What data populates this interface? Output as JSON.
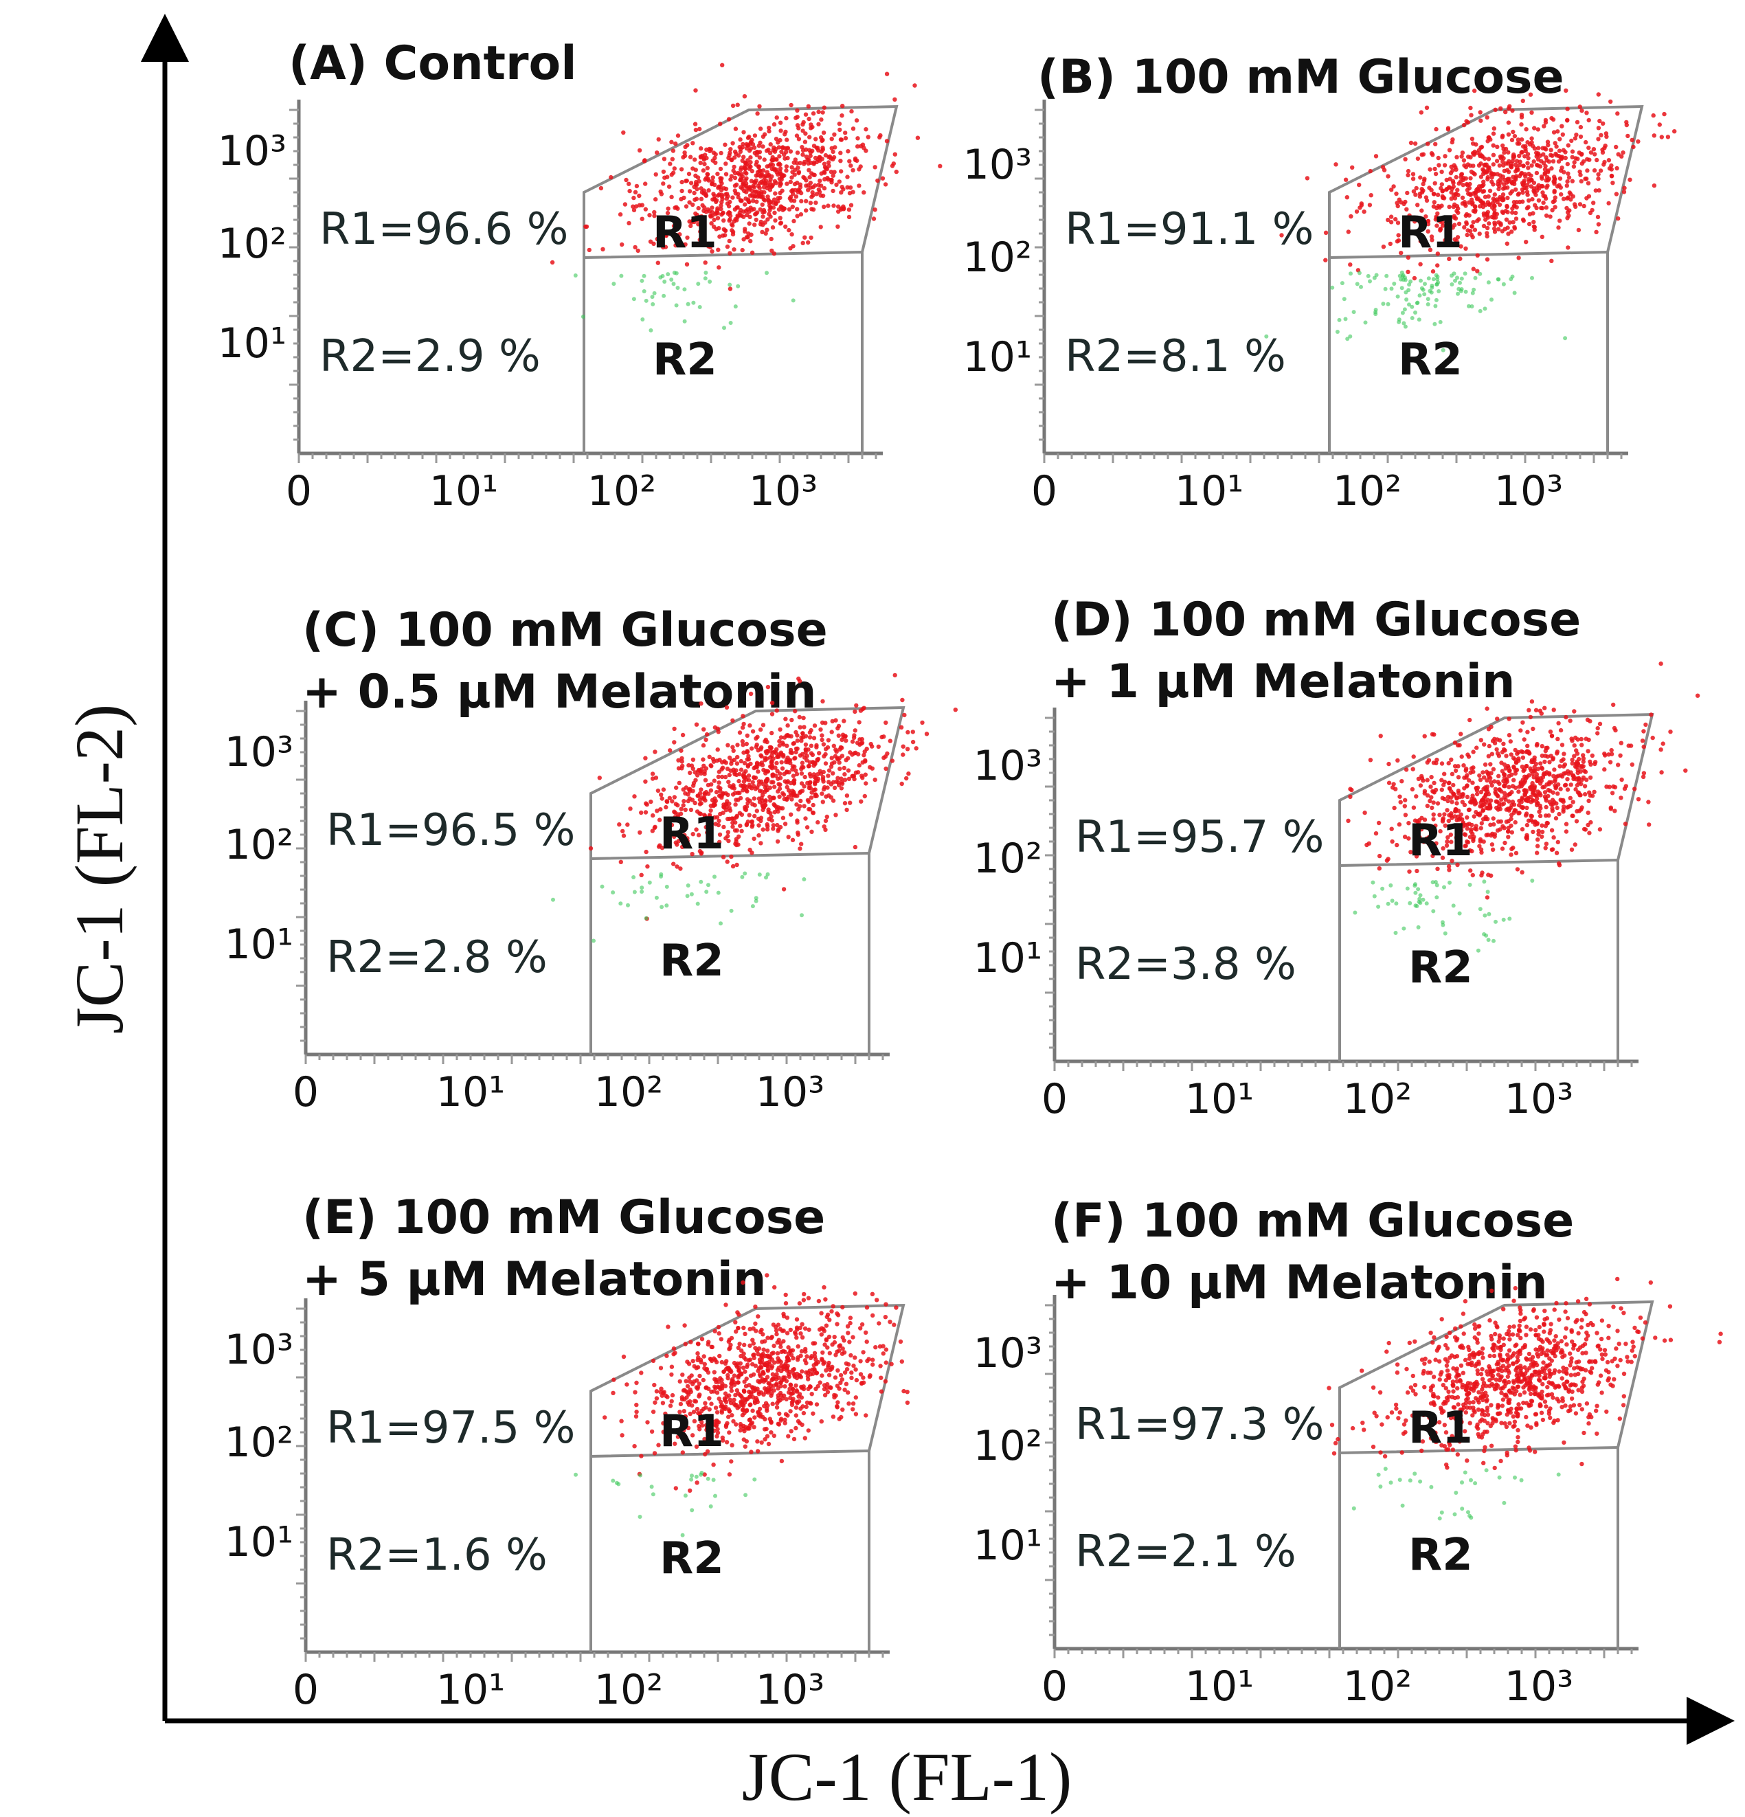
{
  "figure": {
    "x_axis_title": "JC-1 (FL-1)",
    "y_axis_title": "JC-1 (FL-2)"
  },
  "colors": {
    "r1_population": "#e8141b",
    "r2_population": "#3cc85a",
    "gate_line": "#8a8a8a",
    "text": "#111111"
  },
  "chart_data": [
    {
      "type": "scatter",
      "panel": "A",
      "title": [
        "(A) Control"
      ],
      "x_ticks": [
        "0",
        "10¹",
        "10²",
        "10³"
      ],
      "y_ticks": [
        "10³",
        "10²",
        "10¹"
      ],
      "regions": [
        {
          "name": "R1",
          "label": "R1",
          "percent": 96.6,
          "stat": "R1=96.6 %"
        },
        {
          "name": "R2",
          "label": "R2",
          "percent": 2.9,
          "stat": "R2=2.9 %"
        }
      ]
    },
    {
      "type": "scatter",
      "panel": "B",
      "title": [
        "(B) 100 mM Glucose"
      ],
      "x_ticks": [
        "0",
        "10¹",
        "10²",
        "10³"
      ],
      "y_ticks": [
        "10³",
        "10²",
        "10¹"
      ],
      "regions": [
        {
          "name": "R1",
          "label": "R1",
          "percent": 91.1,
          "stat": "R1=91.1 %"
        },
        {
          "name": "R2",
          "label": "R2",
          "percent": 8.1,
          "stat": "R2=8.1 %"
        }
      ]
    },
    {
      "type": "scatter",
      "panel": "C",
      "title": [
        "(C) 100 mM Glucose",
        "+ 0.5 µM Melatonin"
      ],
      "x_ticks": [
        "0",
        "10¹",
        "10²",
        "10³"
      ],
      "y_ticks": [
        "10³",
        "10²",
        "10¹"
      ],
      "regions": [
        {
          "name": "R1",
          "label": "R1",
          "percent": 96.5,
          "stat": "R1=96.5 %"
        },
        {
          "name": "R2",
          "label": "R2",
          "percent": 2.8,
          "stat": "R2=2.8 %"
        }
      ]
    },
    {
      "type": "scatter",
      "panel": "D",
      "title": [
        "(D) 100 mM Glucose",
        "+ 1 µM Melatonin"
      ],
      "x_ticks": [
        "0",
        "10¹",
        "10²",
        "10³"
      ],
      "y_ticks": [
        "10³",
        "10²",
        "10¹"
      ],
      "regions": [
        {
          "name": "R1",
          "label": "R1",
          "percent": 95.7,
          "stat": "R1=95.7 %"
        },
        {
          "name": "R2",
          "label": "R2",
          "percent": 3.8,
          "stat": "R2=3.8 %"
        }
      ]
    },
    {
      "type": "scatter",
      "panel": "E",
      "title": [
        "(E) 100 mM Glucose",
        "+ 5 µM Melatonin"
      ],
      "x_ticks": [
        "0",
        "10¹",
        "10²",
        "10³"
      ],
      "y_ticks": [
        "10³",
        "10²",
        "10¹"
      ],
      "regions": [
        {
          "name": "R1",
          "label": "R1",
          "percent": 97.5,
          "stat": "R1=97.5 %"
        },
        {
          "name": "R2",
          "label": "R2",
          "percent": 1.6,
          "stat": "R2=1.6 %"
        }
      ]
    },
    {
      "type": "scatter",
      "panel": "F",
      "title": [
        "(F) 100 mM Glucose",
        "+ 10 µM Melatonin"
      ],
      "x_ticks": [
        "0",
        "10¹",
        "10²",
        "10³"
      ],
      "y_ticks": [
        "10³",
        "10²",
        "10¹"
      ],
      "regions": [
        {
          "name": "R1",
          "label": "R1",
          "percent": 97.3,
          "stat": "R1=97.3 %"
        },
        {
          "name": "R2",
          "label": "R2",
          "percent": 2.1,
          "stat": "R2=2.1 %"
        }
      ]
    }
  ]
}
